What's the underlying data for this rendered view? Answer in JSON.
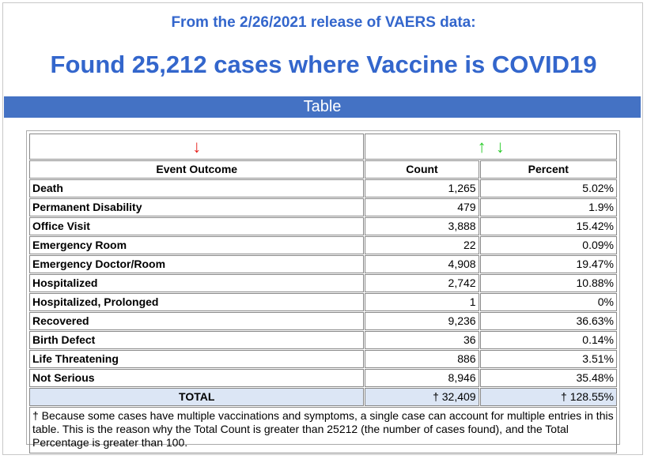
{
  "header": {
    "subtitle": "From the 2/26/2021 release of VAERS data:",
    "headline": "Found 25,212 cases where Vaccine is COVID19"
  },
  "section": {
    "title": "Table"
  },
  "sort": {
    "left_arrow": "↓",
    "up_arrow": "↑",
    "down_arrow": "↓",
    "colors": {
      "down_active": "#e8201c",
      "sort_available": "#2ccc2c"
    }
  },
  "table": {
    "columns": [
      "Event Outcome",
      "Count",
      "Percent"
    ],
    "rows": [
      {
        "outcome": "Death",
        "count": "1,265",
        "percent": "5.02%"
      },
      {
        "outcome": "Permanent Disability",
        "count": "479",
        "percent": "1.9%"
      },
      {
        "outcome": "Office Visit",
        "count": "3,888",
        "percent": "15.42%"
      },
      {
        "outcome": "Emergency Room",
        "count": "22",
        "percent": "0.09%"
      },
      {
        "outcome": "Emergency Doctor/Room",
        "count": "4,908",
        "percent": "19.47%"
      },
      {
        "outcome": "Hospitalized",
        "count": "2,742",
        "percent": "10.88%"
      },
      {
        "outcome": "Hospitalized, Prolonged",
        "count": "1",
        "percent": "0%"
      },
      {
        "outcome": "Recovered",
        "count": "9,236",
        "percent": "36.63%"
      },
      {
        "outcome": "Birth Defect",
        "count": "36",
        "percent": "0.14%"
      },
      {
        "outcome": "Life Threatening",
        "count": "886",
        "percent": "3.51%"
      },
      {
        "outcome": "Not Serious",
        "count": "8,946",
        "percent": "35.48%"
      }
    ],
    "total": {
      "label": "TOTAL",
      "count": "† 32,409",
      "percent": "† 128.55%"
    },
    "footnote": "† Because some cases have multiple vaccinations and symptoms, a single case can account for multiple entries in this table. This is the reason why the Total Count is greater than 25212 (the number of cases found), and the Total Percentage is greater than 100."
  },
  "colors": {
    "accent": "#3366cc",
    "bar": "#4472c4",
    "total_row": "#dce6f5"
  }
}
